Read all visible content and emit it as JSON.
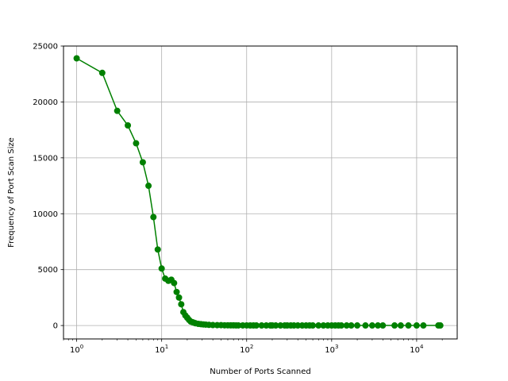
{
  "chart_data": {
    "type": "line",
    "title": "",
    "xlabel": "Number of Ports Scanned",
    "ylabel": "Frequency of Port Scan Size",
    "xscale": "log",
    "xlim": [
      0.7,
      30000
    ],
    "ylim": [
      -1200,
      25000
    ],
    "grid": true,
    "legend": "none",
    "x_ticks": [
      {
        "value": 1,
        "base": "10",
        "exp": "0"
      },
      {
        "value": 10,
        "base": "10",
        "exp": "1"
      },
      {
        "value": 100,
        "base": "10",
        "exp": "2"
      },
      {
        "value": 1000,
        "base": "10",
        "exp": "3"
      },
      {
        "value": 10000,
        "base": "10",
        "exp": "4"
      }
    ],
    "y_ticks": [
      {
        "value": 0,
        "label": "0"
      },
      {
        "value": 5000,
        "label": "5000"
      },
      {
        "value": 10000,
        "label": "10000"
      },
      {
        "value": 15000,
        "label": "15000"
      },
      {
        "value": 20000,
        "label": "20000"
      },
      {
        "value": 25000,
        "label": "25000"
      }
    ],
    "series": [
      {
        "color": "#008000",
        "x": [
          1,
          2,
          3,
          4,
          5,
          6,
          7,
          8,
          9,
          10,
          11,
          12,
          13,
          14,
          15,
          16,
          17,
          18,
          19,
          20,
          21,
          22,
          23,
          24,
          25,
          27,
          29,
          31,
          33,
          36,
          40,
          45,
          50,
          55,
          60,
          65,
          70,
          75,
          80,
          90,
          100,
          110,
          120,
          130,
          150,
          170,
          190,
          200,
          220,
          250,
          280,
          300,
          330,
          360,
          400,
          450,
          500,
          550,
          600,
          700,
          800,
          900,
          1000,
          1100,
          1200,
          1300,
          1500,
          1700,
          2000,
          2500,
          3000,
          3500,
          4000,
          5500,
          6500,
          8000,
          10000,
          12000,
          18000,
          19000
        ],
        "y": [
          23900,
          22600,
          19200,
          17900,
          16300,
          14600,
          12500,
          9700,
          6800,
          5100,
          4200,
          4000,
          4100,
          3800,
          3000,
          2500,
          1900,
          1200,
          900,
          700,
          500,
          350,
          300,
          250,
          200,
          150,
          120,
          100,
          80,
          60,
          40,
          30,
          30,
          20,
          20,
          15,
          15,
          10,
          10,
          10,
          10,
          8,
          8,
          8,
          5,
          5,
          5,
          5,
          5,
          5,
          5,
          5,
          5,
          5,
          5,
          5,
          5,
          5,
          5,
          5,
          5,
          5,
          5,
          5,
          5,
          5,
          5,
          5,
          5,
          5,
          5,
          5,
          5,
          5,
          5,
          5,
          5,
          5,
          5,
          5
        ]
      }
    ]
  }
}
